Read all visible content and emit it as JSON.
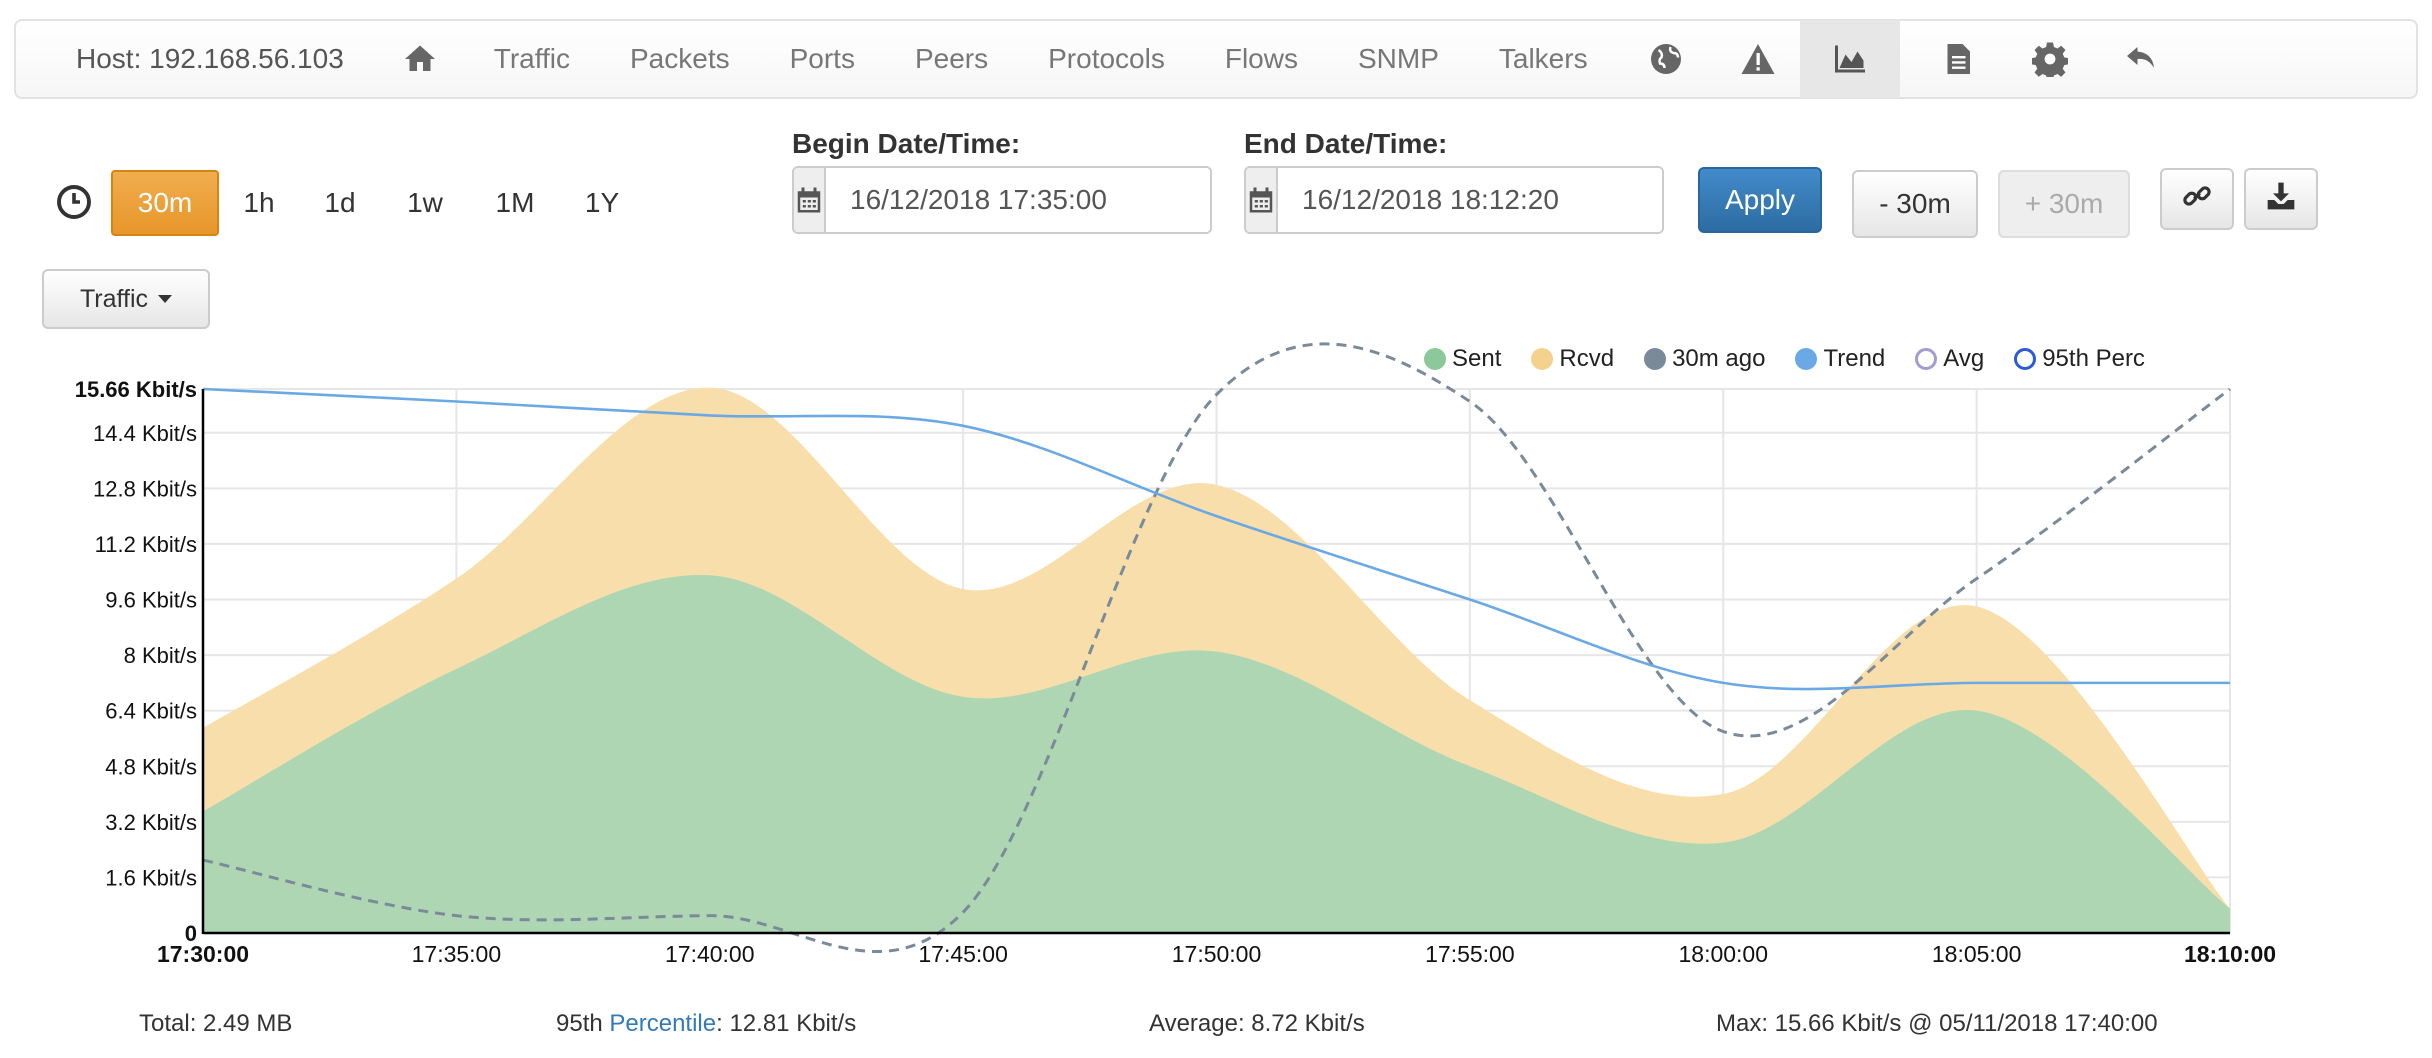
{
  "nav": {
    "host": "Host: 192.168.56.103",
    "items": [
      "Traffic",
      "Packets",
      "Ports",
      "Peers",
      "Protocols",
      "Flows",
      "SNMP",
      "Talkers"
    ],
    "icons": [
      "home-icon",
      "globe-icon",
      "alert-icon",
      "area-chart-icon",
      "file-icon",
      "gear-icon",
      "undo-icon"
    ],
    "active_icon": "area-chart-icon"
  },
  "periods": [
    "30m",
    "1h",
    "1d",
    "1w",
    "1M",
    "1Y"
  ],
  "active_period": "30m",
  "begin": {
    "label": "Begin Date/Time:",
    "value": "16/12/2018 17:35:00"
  },
  "end": {
    "label": "End Date/Time:",
    "value": "16/12/2018 18:12:20"
  },
  "buttons": {
    "apply": "Apply",
    "minus": "- 30m",
    "plus": "+ 30m"
  },
  "metric_select": "Traffic",
  "legend": [
    {
      "name": "Sent",
      "color": "#8cc99a",
      "style": "filled"
    },
    {
      "name": "Rcvd",
      "color": "#f5d18e",
      "style": "filled"
    },
    {
      "name": "30m ago",
      "color": "#7b8a99",
      "style": "filled"
    },
    {
      "name": "Trend",
      "color": "#6aa9e6",
      "style": "filled"
    },
    {
      "name": "Avg",
      "color": "#a69bd1",
      "style": "ring"
    },
    {
      "name": "95th Perc",
      "color": "#2b5bd6",
      "style": "ring"
    }
  ],
  "chart_data": {
    "type": "area",
    "y_ticks": [
      "0",
      "1.6 Kbit/s",
      "3.2 Kbit/s",
      "4.8 Kbit/s",
      "6.4 Kbit/s",
      "8 Kbit/s",
      "9.6 Kbit/s",
      "11.2 Kbit/s",
      "12.8 Kbit/s",
      "14.4 Kbit/s",
      "15.66 Kbit/s"
    ],
    "y_tick_values": [
      0,
      1.6,
      3.2,
      4.8,
      6.4,
      8,
      9.6,
      11.2,
      12.8,
      14.4,
      15.66
    ],
    "ylim": [
      0,
      15.66
    ],
    "x_ticks": [
      "17:30:00",
      "17:35:00",
      "17:40:00",
      "17:45:00",
      "17:50:00",
      "17:55:00",
      "18:00:00",
      "18:05:00",
      "18:10:00"
    ],
    "x": [
      "17:30:00",
      "17:35:00",
      "17:40:00",
      "17:45:00",
      "17:50:00",
      "17:55:00",
      "18:00:00",
      "18:05:00",
      "18:10:00"
    ],
    "grid": true,
    "series": [
      {
        "name": "Sent",
        "type": "area",
        "color": "#aed6b2",
        "values": [
          3.5,
          7.6,
          10.3,
          6.8,
          8.1,
          4.8,
          2.6,
          6.4,
          0.7
        ]
      },
      {
        "name": "Rcvd",
        "type": "area",
        "color": "#f7deaa",
        "values": [
          5.9,
          10.2,
          15.7,
          9.9,
          12.9,
          6.7,
          4.0,
          9.4,
          0.7
        ]
      },
      {
        "name": "30m ago",
        "type": "dashed-line",
        "color": "#7b8a99",
        "x": [
          "17:30:00",
          "17:35:00",
          "17:40:00",
          "17:45:00",
          "17:50:00",
          "17:55:00",
          "18:00:00",
          "18:05:00",
          "18:10:00"
        ],
        "values": [
          2.1,
          0.5,
          0.5,
          0.6,
          15.5,
          15.3,
          5.8,
          10.2,
          15.66
        ]
      },
      {
        "name": "Trend",
        "type": "line",
        "color": "#6aa9e6",
        "values": [
          15.66,
          15.3,
          14.9,
          14.6,
          12.0,
          9.6,
          7.2,
          7.2,
          7.2
        ]
      }
    ]
  },
  "footer": {
    "total": "Total: 2.49 MB",
    "perc_prefix": "95th ",
    "perc_link": "Percentile",
    "perc_value": ": 12.81 Kbit/s",
    "average": "Average: 8.72 Kbit/s",
    "max": "Max: 15.66 Kbit/s @ 05/11/2018 17:40:00"
  }
}
